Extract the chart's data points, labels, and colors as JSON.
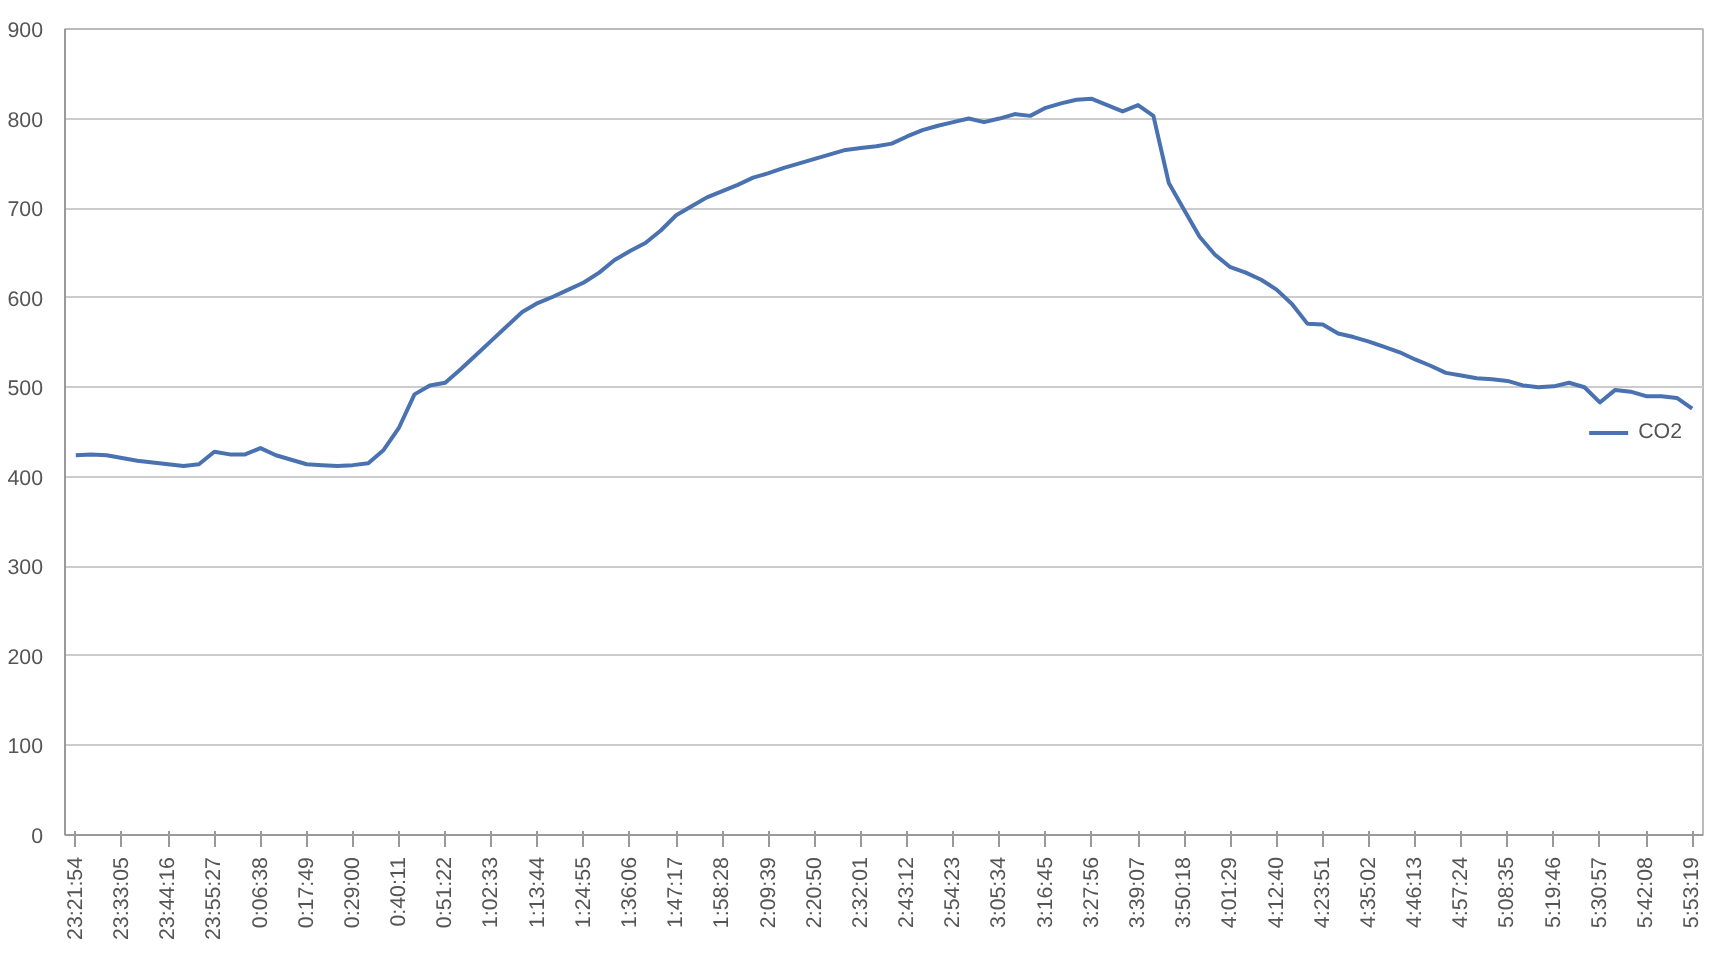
{
  "chart_data": {
    "type": "line",
    "ylim": [
      0,
      900
    ],
    "yticks": [
      0,
      100,
      200,
      300,
      400,
      500,
      600,
      700,
      800,
      900
    ],
    "categories": [
      "23:21:54",
      null,
      null,
      "23:33:05",
      null,
      null,
      "23:44:16",
      null,
      null,
      "23:55:27",
      null,
      null,
      "0:06:38",
      null,
      null,
      "0:17:49",
      null,
      null,
      "0:29:00",
      null,
      null,
      "0:40:11",
      null,
      null,
      "0:51:22",
      null,
      null,
      "1:02:33",
      null,
      null,
      "1:13:44",
      null,
      null,
      "1:24:55",
      null,
      null,
      "1:36:06",
      null,
      null,
      "1:47:17",
      null,
      null,
      "1:58:28",
      null,
      null,
      "2:09:39",
      null,
      null,
      "2:20:50",
      null,
      null,
      "2:32:01",
      null,
      null,
      "2:43:12",
      null,
      null,
      "2:54:23",
      null,
      null,
      "3:05:34",
      null,
      null,
      "3:16:45",
      null,
      null,
      "3:27:56",
      null,
      null,
      "3:39:07",
      null,
      null,
      "3:50:18",
      null,
      null,
      "4:01:29",
      null,
      null,
      "4:12:40",
      null,
      null,
      "4:23:51",
      null,
      null,
      "4:35:02",
      null,
      null,
      "4:46:13",
      null,
      null,
      "4:57:24",
      null,
      null,
      "5:08:35",
      null,
      null,
      "5:19:46",
      null,
      null,
      "5:30:57",
      null,
      null,
      "5:42:08",
      null,
      null,
      "5:53:19"
    ],
    "series": [
      {
        "name": "CO2",
        "color": "#4a72b0",
        "values": [
          424,
          425,
          424,
          421,
          418,
          416,
          414,
          412,
          414,
          428,
          425,
          425,
          432,
          424,
          419,
          414,
          413,
          412,
          413,
          415,
          430,
          455,
          492,
          502,
          505,
          520,
          536,
          552,
          568,
          584,
          594,
          601,
          609,
          617,
          628,
          642,
          652,
          661,
          675,
          692,
          702,
          712,
          719,
          726,
          734,
          739,
          745,
          750,
          755,
          760,
          765,
          767,
          769,
          772,
          780,
          787,
          792,
          796,
          800,
          796,
          800,
          805,
          803,
          812,
          817,
          821,
          822,
          815,
          808,
          815,
          803,
          728,
          698,
          668,
          648,
          634,
          628,
          620,
          609,
          593,
          571,
          570,
          560,
          556,
          551,
          545,
          539,
          531,
          524,
          516,
          513,
          510,
          509,
          507,
          502,
          500,
          501,
          505,
          500,
          483,
          497,
          495,
          490,
          490,
          488,
          476
        ]
      }
    ],
    "grid": "y",
    "legend": "right",
    "marker": "none",
    "line_style": "solid"
  }
}
